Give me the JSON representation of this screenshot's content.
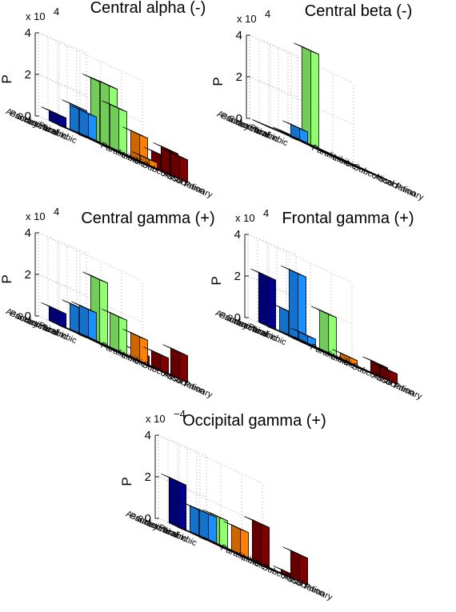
{
  "chart_data": [
    {
      "type": "bar3d",
      "title": "Central alpha (-)",
      "ylabel": "P",
      "scale_label": "x 10",
      "scale_exponent": "4",
      "zlim": [
        0,
        4
      ],
      "zticks": [
        "0",
        "2",
        "4"
      ],
      "row_labels": [
        "Primary",
        "Association",
        "Subcortical",
        "Limbic",
        "Paralimbic"
      ],
      "col_labels": [
        "Paralimbic",
        "Limbic",
        "Subcortical",
        "Association",
        "Primary"
      ],
      "colors": [
        "#00008f",
        "#1a8fff",
        "#90ff70",
        "#ff7f00",
        "#800000"
      ],
      "values": [
        [
          0.5,
          1.3,
          3.0,
          0.0,
          0.0
        ],
        [
          0.0,
          1.2,
          3.0,
          0.0,
          0.0
        ],
        [
          0.0,
          0.0,
          2.1,
          1.3,
          0.8
        ],
        [
          0.0,
          0.0,
          0.0,
          0.3,
          1.2
        ],
        [
          0.0,
          0.0,
          0.0,
          0.0,
          1.1
        ]
      ]
    },
    {
      "type": "bar3d",
      "title": "Central beta (-)",
      "ylabel": "P",
      "scale_label": "x 10",
      "scale_exponent": "4",
      "zlim": [
        0,
        4
      ],
      "zticks": [
        "0",
        "2",
        "4"
      ],
      "row_labels": [
        "Primary",
        "Association",
        "Subcortical",
        "Limbic",
        "Paralimbic"
      ],
      "col_labels": [
        "Paralimbic",
        "Limbic",
        "Subcortical",
        "Association",
        "Primary"
      ],
      "colors": [
        "#00008f",
        "#1a8fff",
        "#90ff70",
        "#ff7f00",
        "#800000"
      ],
      "values": [
        [
          0.0,
          0.1,
          4.6,
          0.0,
          0.0
        ],
        [
          0.0,
          0.6,
          0.0,
          0.0,
          0.0
        ],
        [
          0.0,
          0.0,
          0.0,
          0.0,
          0.0
        ],
        [
          0.0,
          0.0,
          0.0,
          0.0,
          0.0
        ],
        [
          0.0,
          0.0,
          0.0,
          0.0,
          0.0
        ]
      ]
    },
    {
      "type": "bar3d",
      "title": "Central gamma (+)",
      "ylabel": "P",
      "scale_label": "x 10",
      "scale_exponent": "4",
      "zlim": [
        0,
        4
      ],
      "zticks": [
        "0",
        "2",
        "4"
      ],
      "row_labels": [
        "Primary",
        "Association",
        "Subcortical",
        "Limbic",
        "Paralimbic"
      ],
      "col_labels": [
        "Paralimbic",
        "Limbic",
        "Subcortical",
        "Association",
        "Primary"
      ],
      "colors": [
        "#00008f",
        "#1a8fff",
        "#90ff70",
        "#ff7f00",
        "#800000"
      ],
      "values": [
        [
          0.7,
          1.3,
          3.1,
          0.0,
          0.5
        ],
        [
          0.0,
          1.4,
          0.0,
          0.0,
          0.0
        ],
        [
          0.0,
          0.0,
          1.7,
          1.2,
          0.8
        ],
        [
          0.0,
          0.0,
          0.0,
          0.0,
          0.0
        ],
        [
          0.0,
          0.0,
          0.0,
          0.0,
          1.3
        ]
      ]
    },
    {
      "type": "bar3d",
      "title": "Frontal gamma (+)",
      "ylabel": "P",
      "scale_label": "x 10",
      "scale_exponent": "4",
      "zlim": [
        0,
        4
      ],
      "zticks": [
        "0",
        "2",
        "4"
      ],
      "row_labels": [
        "Primary",
        "Association",
        "Subcortical",
        "Limbic",
        "Paralimbic"
      ],
      "col_labels": [
        "Paralimbic",
        "Limbic",
        "Subcortical",
        "Association",
        "Primary"
      ],
      "colors": [
        "#00008f",
        "#1a8fff",
        "#90ff70",
        "#ff7f00",
        "#800000"
      ],
      "values": [
        [
          2.4,
          1.2,
          0.0,
          0.0,
          0.0
        ],
        [
          0.0,
          3.2,
          0.0,
          0.0,
          0.0
        ],
        [
          0.0,
          0.4,
          1.9,
          0.3,
          0.0
        ],
        [
          0.0,
          0.0,
          0.0,
          0.0,
          0.6
        ],
        [
          0.0,
          0.0,
          0.0,
          0.0,
          0.5
        ]
      ]
    },
    {
      "type": "bar3d",
      "title": "Occipital gamma (+)",
      "ylabel": "P",
      "scale_label": "x 10",
      "scale_exponent": "−4",
      "zlim": [
        0,
        4
      ],
      "zticks": [
        "0",
        "2",
        "4"
      ],
      "row_labels": [
        "Primary",
        "Association",
        "Subcortical",
        "Limbic",
        "Paralimbic"
      ],
      "col_labels": [
        "Paralimbic",
        "Limbic",
        "Subcortical",
        "Association",
        "Primary"
      ],
      "colors": [
        "#00008f",
        "#1a8fff",
        "#90ff70",
        "#ff7f00",
        "#800000"
      ],
      "values": [
        [
          2.2,
          1.3,
          1.4,
          1.3,
          2.0
        ],
        [
          0.0,
          1.3,
          0.0,
          0.0,
          0.0
        ],
        [
          0.0,
          0.0,
          0.0,
          0.0,
          0.0
        ],
        [
          0.0,
          0.0,
          0.0,
          0.0,
          0.2
        ],
        [
          0.0,
          0.0,
          0.0,
          0.0,
          1.3
        ]
      ]
    }
  ]
}
